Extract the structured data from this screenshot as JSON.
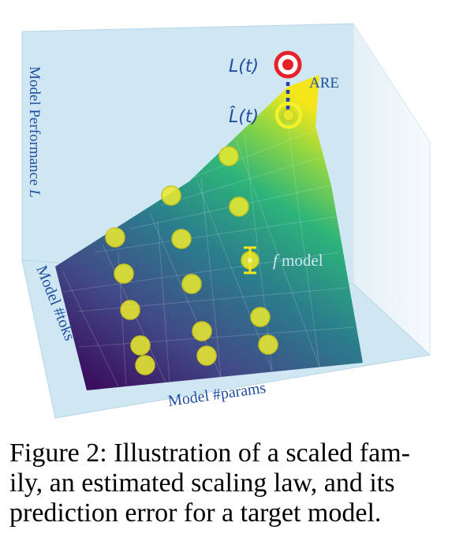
{
  "figure": {
    "axis_y_label": "Model Performance",
    "axis_y_symbol": "L",
    "axis_x_label": "Model #params",
    "axis_z_label": "Model #toks",
    "target_label": "L(t)",
    "estimate_label": "L̂(t)",
    "error_label": "ARE",
    "model_label_italic": "f",
    "model_label": "model",
    "colors": {
      "pane": "#cfe6f3",
      "pane_edge": "#b8d6e8",
      "points": "#e8e830",
      "point_edge": "#c9c31a",
      "target": "#e8202a",
      "error_line": "#1f3fb0",
      "label_blue": "#1f4fa0",
      "label_light": "#cfe6f3",
      "surface_low": "#3b0f5e",
      "surface_high": "#f4e61a"
    },
    "icons": [
      "target-marker-icon",
      "estimate-marker-icon",
      "error-bar-icon"
    ]
  },
  "caption": {
    "line1": "Figure 2: Illustration of a scaled fam-",
    "line2": "ily, an estimated scaling law, and its",
    "line3": "prediction error for a target model."
  }
}
